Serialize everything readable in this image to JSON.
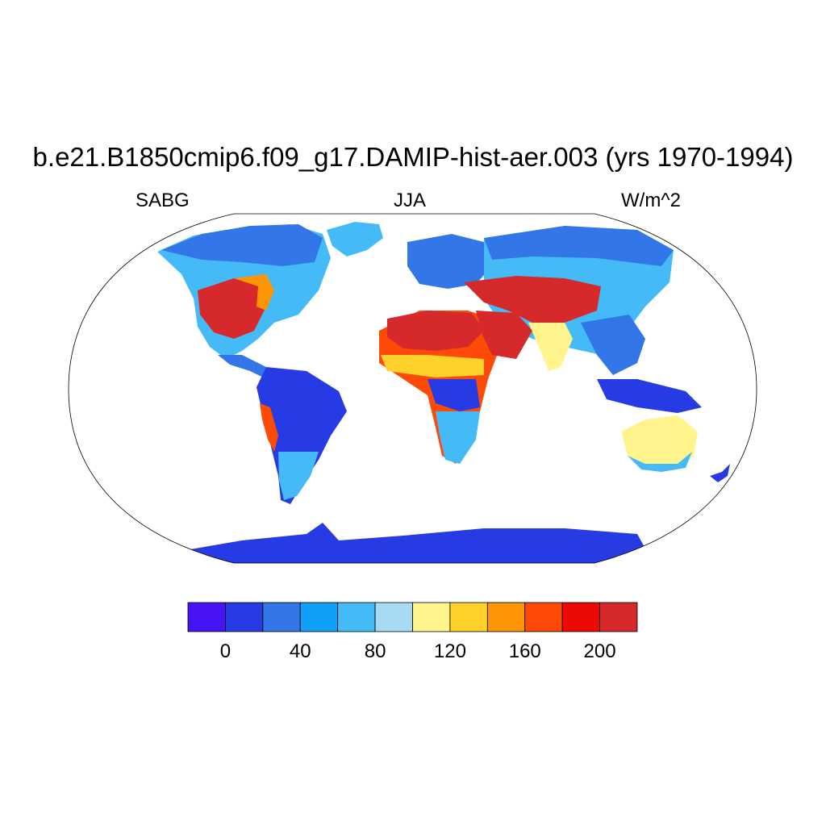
{
  "title": "b.e21.B1850cmip6.f09_g17.DAMIP-hist-aer.003 (yrs 1970-1994)",
  "left_label": "SABG",
  "center_label": "JJA",
  "right_label": "W/m^2",
  "map": {
    "projection": "robinson",
    "variable": "SABG",
    "season": "JJA",
    "units": "W/m^2",
    "ocean_fill": "#ffffff",
    "land_only": true,
    "regions": [
      {
        "region": "north-america-west",
        "value_range": [
          160,
          220
        ]
      },
      {
        "region": "north-america-east",
        "value_range": [
          40,
          100
        ]
      },
      {
        "region": "canada-arctic",
        "value_range": [
          20,
          60
        ]
      },
      {
        "region": "greenland",
        "value_range": [
          60,
          80
        ]
      },
      {
        "region": "south-america-amazon",
        "value_range": [
          0,
          40
        ]
      },
      {
        "region": "south-america-andes",
        "value_range": [
          140,
          180
        ]
      },
      {
        "region": "sahara-arabia",
        "value_range": [
          180,
          220
        ]
      },
      {
        "region": "central-africa",
        "value_range": [
          0,
          40
        ]
      },
      {
        "region": "southern-africa",
        "value_range": [
          60,
          120
        ]
      },
      {
        "region": "europe",
        "value_range": [
          20,
          60
        ]
      },
      {
        "region": "central-asia",
        "value_range": [
          180,
          220
        ]
      },
      {
        "region": "siberia",
        "value_range": [
          20,
          80
        ]
      },
      {
        "region": "india-southeast-asia",
        "value_range": [
          20,
          140
        ]
      },
      {
        "region": "australia",
        "value_range": [
          100,
          140
        ]
      },
      {
        "region": "antarctica",
        "value_range": [
          0,
          20
        ]
      }
    ]
  },
  "colorbar": {
    "colors": [
      "#4713f5",
      "#263be4",
      "#3276e8",
      "#129ff7",
      "#44bbf6",
      "#a8daf3",
      "#fff58c",
      "#fdd02a",
      "#fd9505",
      "#fd4a06",
      "#ec0a04",
      "#d5292b"
    ],
    "boundaries": [
      -20,
      0,
      20,
      40,
      60,
      80,
      100,
      120,
      140,
      160,
      180,
      200,
      220
    ],
    "tick_labels": [
      "0",
      "40",
      "80",
      "120",
      "160",
      "200"
    ],
    "tick_values": [
      0,
      40,
      80,
      120,
      160,
      200
    ]
  }
}
